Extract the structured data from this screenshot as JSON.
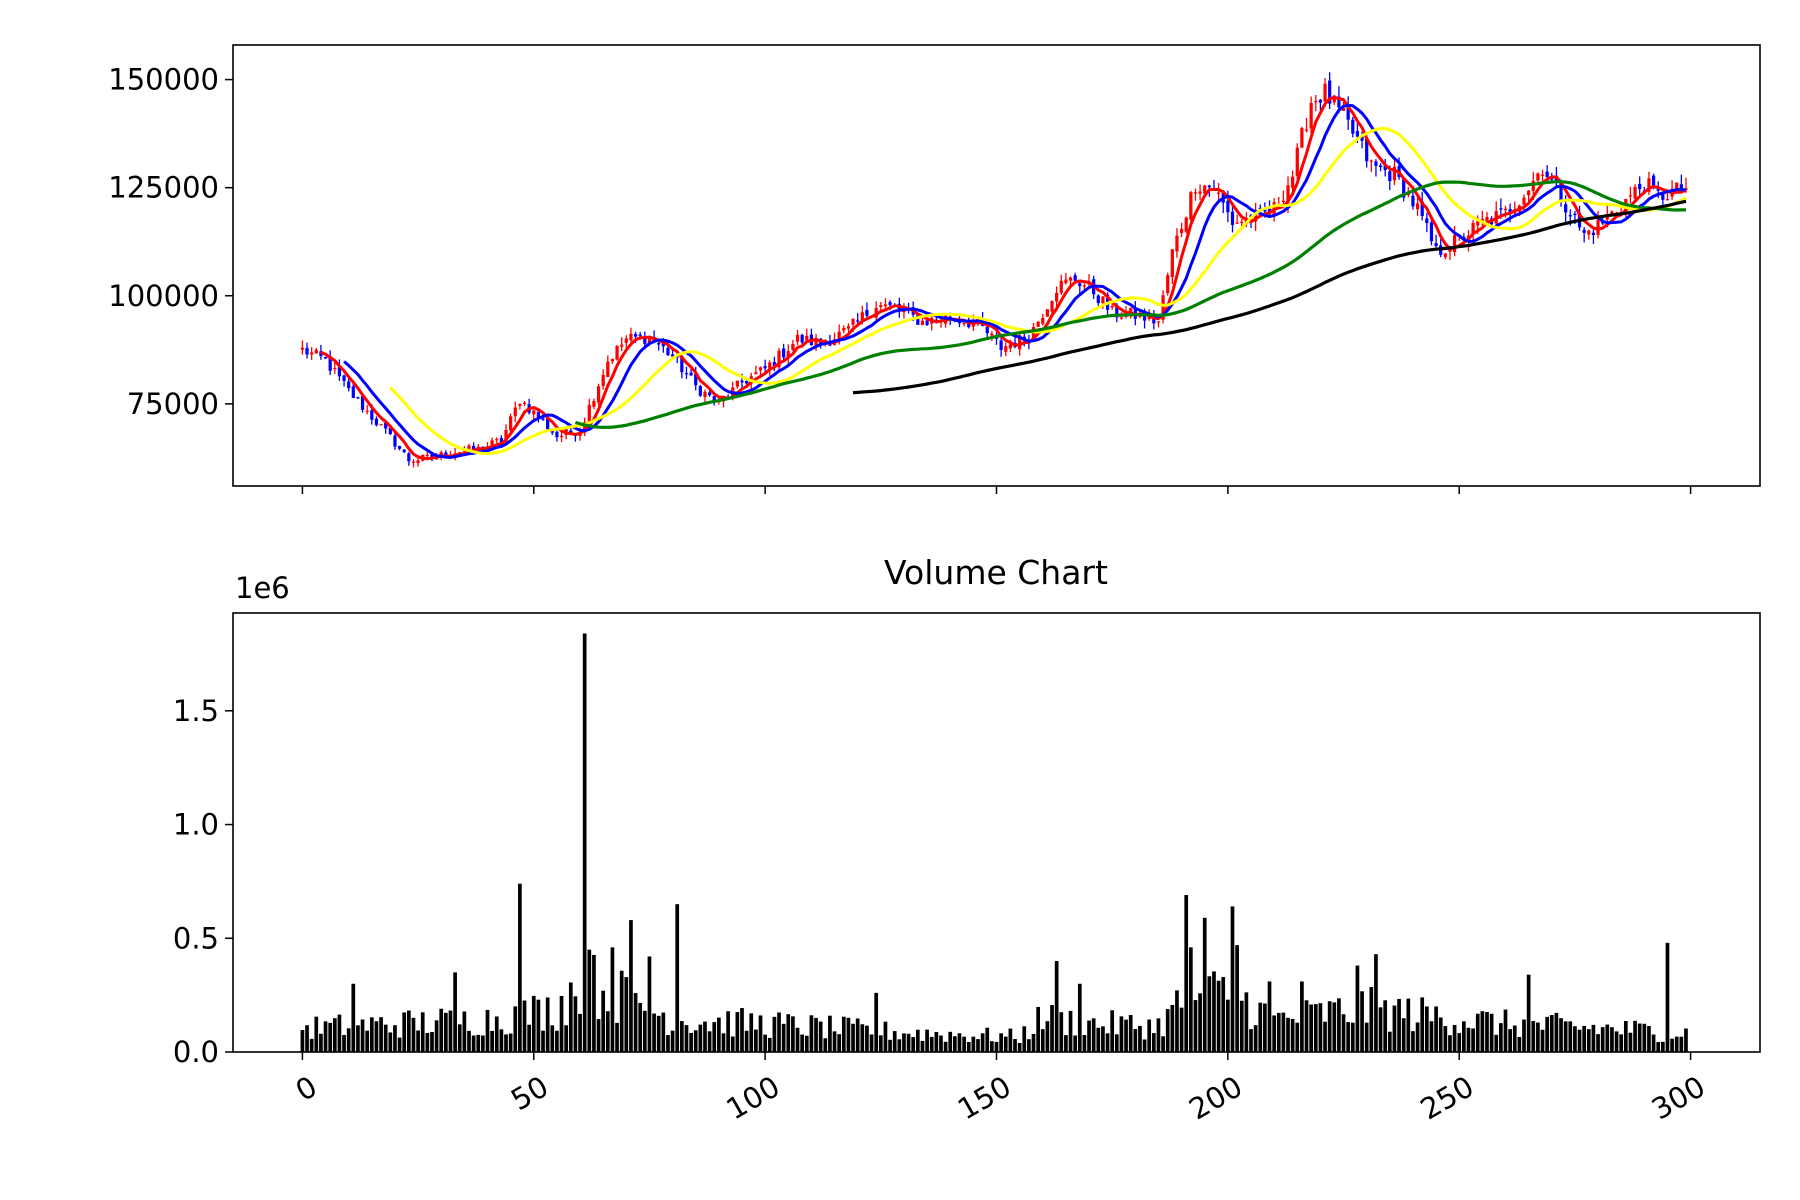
{
  "colors": {
    "up": "#ff0000",
    "down": "#0000ff",
    "ma5": "#ff0000",
    "ma10": "#0000ff",
    "ma20": "#ffff00",
    "ma60": "#008000",
    "ma120": "#000000",
    "volume": "#000000"
  },
  "chart_data": [
    {
      "type": "candlestick",
      "title": "",
      "xlim": [
        -15,
        315
      ],
      "ylim": [
        56000,
        158000
      ],
      "x_ticks": [
        0,
        50,
        100,
        150,
        200,
        250,
        300
      ],
      "x_tick_labels_visible": false,
      "y_ticks": [
        75000,
        100000,
        125000,
        150000
      ],
      "y_tick_labels": [
        "75000",
        "100000",
        "125000",
        "150000"
      ],
      "grid": false,
      "legend": "none",
      "n_candles": 300,
      "close_keypoints": [
        [
          0,
          87500
        ],
        [
          5,
          85000
        ],
        [
          10,
          78000
        ],
        [
          15,
          72000
        ],
        [
          20,
          66000
        ],
        [
          23,
          62000
        ],
        [
          28,
          62500
        ],
        [
          33,
          64000
        ],
        [
          38,
          64500
        ],
        [
          43,
          66500
        ],
        [
          47,
          76000
        ],
        [
          51,
          72000
        ],
        [
          55,
          67500
        ],
        [
          60,
          69000
        ],
        [
          66,
          85000
        ],
        [
          70,
          90000
        ],
        [
          75,
          90500
        ],
        [
          80,
          86000
        ],
        [
          85,
          79000
        ],
        [
          90,
          75000
        ],
        [
          95,
          80000
        ],
        [
          100,
          83000
        ],
        [
          107,
          90000
        ],
        [
          112,
          89000
        ],
        [
          118,
          92000
        ],
        [
          124,
          98000
        ],
        [
          128,
          97000
        ],
        [
          134,
          94000
        ],
        [
          140,
          95000
        ],
        [
          146,
          93500
        ],
        [
          151,
          88000
        ],
        [
          157,
          90500
        ],
        [
          163,
          102000
        ],
        [
          167,
          104000
        ],
        [
          171,
          101000
        ],
        [
          175,
          96000
        ],
        [
          180,
          95500
        ],
        [
          185,
          94000
        ],
        [
          188,
          110000
        ],
        [
          193,
          126000
        ],
        [
          197,
          125000
        ],
        [
          201,
          117000
        ],
        [
          206,
          118000
        ],
        [
          210,
          120000
        ],
        [
          214,
          128000
        ],
        [
          218,
          145000
        ],
        [
          221,
          147000
        ],
        [
          225,
          141000
        ],
        [
          228,
          136000
        ],
        [
          231,
          130000
        ],
        [
          236,
          128000
        ],
        [
          241,
          120000
        ],
        [
          245,
          110000
        ],
        [
          250,
          113000
        ],
        [
          255,
          117000
        ],
        [
          260,
          119000
        ],
        [
          265,
          125000
        ],
        [
          268,
          130000
        ],
        [
          272,
          123000
        ],
        [
          277,
          114000
        ],
        [
          282,
          118000
        ],
        [
          286,
          122000
        ],
        [
          290,
          126000
        ],
        [
          293,
          123000
        ],
        [
          296,
          124000
        ],
        [
          299,
          125000
        ]
      ],
      "moving_averages": [
        {
          "period": 5,
          "color": "#ff0000"
        },
        {
          "period": 10,
          "color": "#0000ff"
        },
        {
          "period": 20,
          "color": "#ffff00"
        },
        {
          "period": 60,
          "color": "#008000"
        },
        {
          "period": 120,
          "color": "#000000"
        }
      ]
    },
    {
      "type": "bar",
      "title": "Volume Chart",
      "offset_label": "1e6",
      "xlim": [
        -15,
        315
      ],
      "ylim": [
        0,
        1930000
      ],
      "x_ticks": [
        0,
        50,
        100,
        150,
        200,
        250,
        300
      ],
      "x_tick_labels": [
        "0",
        "50",
        "100",
        "150",
        "200",
        "250",
        "300"
      ],
      "y_ticks": [
        0,
        500000,
        1000000,
        1500000
      ],
      "y_tick_labels": [
        "0.0",
        "0.5",
        "1.0",
        "1.5"
      ],
      "grid": false,
      "legend": "none",
      "n_bars": 300,
      "baseline_keypoints": [
        [
          0,
          110000
        ],
        [
          40,
          150000
        ],
        [
          55,
          200000
        ],
        [
          60,
          330000
        ],
        [
          70,
          250000
        ],
        [
          80,
          150000
        ],
        [
          100,
          130000
        ],
        [
          130,
          90000
        ],
        [
          155,
          70000
        ],
        [
          160,
          160000
        ],
        [
          170,
          130000
        ],
        [
          185,
          120000
        ],
        [
          190,
          230000
        ],
        [
          200,
          280000
        ],
        [
          210,
          150000
        ],
        [
          230,
          200000
        ],
        [
          260,
          130000
        ],
        [
          280,
          110000
        ],
        [
          299,
          90000
        ]
      ],
      "spikes": [
        [
          11,
          300000
        ],
        [
          33,
          350000
        ],
        [
          47,
          740000
        ],
        [
          61,
          1840000
        ],
        [
          62,
          450000
        ],
        [
          67,
          460000
        ],
        [
          71,
          580000
        ],
        [
          75,
          420000
        ],
        [
          81,
          650000
        ],
        [
          124,
          260000
        ],
        [
          163,
          400000
        ],
        [
          168,
          300000
        ],
        [
          191,
          690000
        ],
        [
          192,
          460000
        ],
        [
          195,
          590000
        ],
        [
          201,
          640000
        ],
        [
          202,
          470000
        ],
        [
          209,
          310000
        ],
        [
          216,
          310000
        ],
        [
          228,
          380000
        ],
        [
          232,
          430000
        ],
        [
          265,
          340000
        ],
        [
          295,
          480000
        ]
      ]
    }
  ]
}
